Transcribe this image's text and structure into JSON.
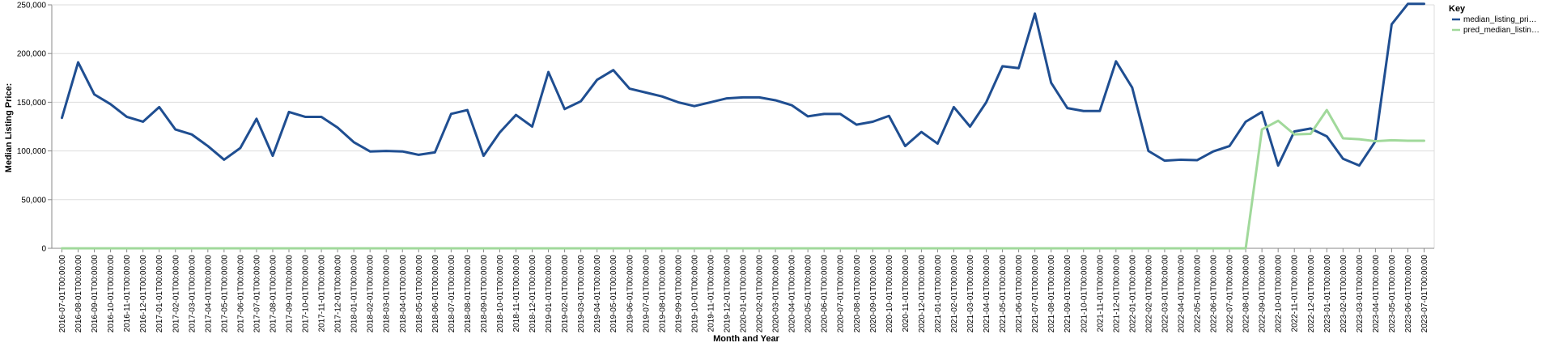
{
  "chart_data": {
    "type": "line",
    "xlabel": "Month and Year",
    "ylabel": "Median Listing Price:",
    "ylim": [
      0,
      250000
    ],
    "yticks": [
      0,
      50000,
      100000,
      150000,
      200000,
      250000
    ],
    "ytick_labels": [
      "0",
      "50,000",
      "100,000",
      "150,000",
      "200,000",
      "250,000"
    ],
    "grid": true,
    "legend_placement": "top-right",
    "legend_title": "Key",
    "x": [
      "2016-07-01T00:00:00",
      "2016-08-01T00:00:00",
      "2016-09-01T00:00:00",
      "2016-10-01T00:00:00",
      "2016-11-01T00:00:00",
      "2016-12-01T00:00:00",
      "2017-01-01T00:00:00",
      "2017-02-01T00:00:00",
      "2017-03-01T00:00:00",
      "2017-04-01T00:00:00",
      "2017-05-01T00:00:00",
      "2017-06-01T00:00:00",
      "2017-07-01T00:00:00",
      "2017-08-01T00:00:00",
      "2017-09-01T00:00:00",
      "2017-10-01T00:00:00",
      "2017-11-01T00:00:00",
      "2017-12-01T00:00:00",
      "2018-01-01T00:00:00",
      "2018-02-01T00:00:00",
      "2018-03-01T00:00:00",
      "2018-04-01T00:00:00",
      "2018-05-01T00:00:00",
      "2018-06-01T00:00:00",
      "2018-07-01T00:00:00",
      "2018-08-01T00:00:00",
      "2018-09-01T00:00:00",
      "2018-10-01T00:00:00",
      "2018-11-01T00:00:00",
      "2018-12-01T00:00:00",
      "2019-01-01T00:00:00",
      "2019-02-01T00:00:00",
      "2019-03-01T00:00:00",
      "2019-04-01T00:00:00",
      "2019-05-01T00:00:00",
      "2019-06-01T00:00:00",
      "2019-07-01T00:00:00",
      "2019-08-01T00:00:00",
      "2019-09-01T00:00:00",
      "2019-10-01T00:00:00",
      "2019-11-01T00:00:00",
      "2019-12-01T00:00:00",
      "2020-01-01T00:00:00",
      "2020-02-01T00:00:00",
      "2020-03-01T00:00:00",
      "2020-04-01T00:00:00",
      "2020-05-01T00:00:00",
      "2020-06-01T00:00:00",
      "2020-07-01T00:00:00",
      "2020-08-01T00:00:00",
      "2020-09-01T00:00:00",
      "2020-10-01T00:00:00",
      "2020-11-01T00:00:00",
      "2020-12-01T00:00:00",
      "2021-01-01T00:00:00",
      "2021-02-01T00:00:00",
      "2021-03-01T00:00:00",
      "2021-04-01T00:00:00",
      "2021-05-01T00:00:00",
      "2021-06-01T00:00:00",
      "2021-07-01T00:00:00",
      "2021-08-01T00:00:00",
      "2021-09-01T00:00:00",
      "2021-10-01T00:00:00",
      "2021-11-01T00:00:00",
      "2021-12-01T00:00:00",
      "2022-01-01T00:00:00",
      "2022-02-01T00:00:00",
      "2022-03-01T00:00:00",
      "2022-04-01T00:00:00",
      "2022-05-01T00:00:00",
      "2022-06-01T00:00:00",
      "2022-07-01T00:00:00",
      "2022-08-01T00:00:00",
      "2022-09-01T00:00:00",
      "2022-10-01T00:00:00",
      "2022-11-01T00:00:00",
      "2022-12-01T00:00:00",
      "2023-01-01T00:00:00",
      "2023-02-01T00:00:00",
      "2023-03-01T00:00:00",
      "2023-04-01T00:00:00",
      "2023-05-01T00:00:00",
      "2023-06-01T00:00:00",
      "2023-07-01T00:00:00"
    ],
    "series": [
      {
        "name": "median_listing_pri…",
        "color": "#1f4e91",
        "values": [
          134000,
          191000,
          158000,
          148000,
          135000,
          130000,
          145000,
          122000,
          117000,
          105000,
          91000,
          103000,
          133000,
          95000,
          140000,
          135000,
          135000,
          124000,
          109000,
          99500,
          100000,
          99500,
          96000,
          98500,
          138000,
          142000,
          95000,
          119000,
          137000,
          125000,
          181000,
          143000,
          151000,
          173000,
          183000,
          164000,
          160000,
          156000,
          150000,
          146000,
          150000,
          154000,
          155000,
          155000,
          152000,
          147000,
          135500,
          138000,
          138000,
          127000,
          130000,
          136000,
          105000,
          119500,
          107500,
          145000,
          125000,
          150000,
          187000,
          185000,
          241000,
          170000,
          144000,
          141000,
          141000,
          192000,
          165000,
          100000,
          90000,
          91000,
          90500,
          99500,
          105000,
          130000,
          140000,
          85000,
          120000,
          123000,
          115000,
          92000,
          85000,
          110000,
          230000,
          251000,
          251000
        ]
      },
      {
        "name": "pred_median_listin…",
        "color": "#a1d99b",
        "values": [
          0,
          0,
          0,
          0,
          0,
          0,
          0,
          0,
          0,
          0,
          0,
          0,
          0,
          0,
          0,
          0,
          0,
          0,
          0,
          0,
          0,
          0,
          0,
          0,
          0,
          0,
          0,
          0,
          0,
          0,
          0,
          0,
          0,
          0,
          0,
          0,
          0,
          0,
          0,
          0,
          0,
          0,
          0,
          0,
          0,
          0,
          0,
          0,
          0,
          0,
          0,
          0,
          0,
          0,
          0,
          0,
          0,
          0,
          0,
          0,
          0,
          0,
          0,
          0,
          0,
          0,
          0,
          0,
          0,
          0,
          0,
          0,
          0,
          0,
          122000,
          131000,
          117000,
          117500,
          142000,
          113000,
          112000,
          110000,
          111000,
          110500,
          110500
        ]
      }
    ]
  }
}
